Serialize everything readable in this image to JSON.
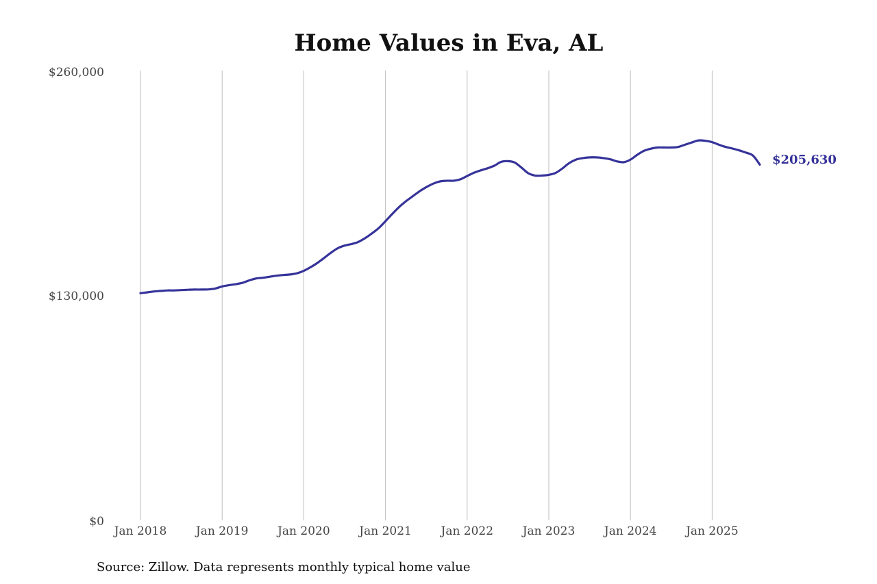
{
  "source_note": "Source: Zillow. Data represents monthly typical home value",
  "colors": {
    "line": "#36339a",
    "grid": "#bdbdbd",
    "text": "#444444"
  },
  "chart_data": {
    "type": "line",
    "title": "Home Values in Eva, AL",
    "xlabel": "",
    "ylabel": "",
    "ylim": [
      0,
      260000
    ],
    "yticks": [
      0,
      130000,
      260000
    ],
    "ytick_labels": [
      "$0",
      "$130,000",
      "$260,000"
    ],
    "xtick_labels": [
      "Jan 2018",
      "Jan 2019",
      "Jan 2020",
      "Jan 2021",
      "Jan 2022",
      "Jan 2023",
      "Jan 2024",
      "Jan 2025"
    ],
    "xtick_years": [
      2018,
      2019,
      2020,
      2021,
      2022,
      2023,
      2024,
      2025
    ],
    "grid": "vertical",
    "end_label": "$205,630",
    "series": [
      {
        "x": [
          "2018-01",
          "2018-02",
          "2018-03",
          "2018-04",
          "2018-05",
          "2018-06",
          "2018-07",
          "2018-08",
          "2018-09",
          "2018-10",
          "2018-11",
          "2018-12",
          "2019-01",
          "2019-02",
          "2019-03",
          "2019-04",
          "2019-05",
          "2019-06",
          "2019-07",
          "2019-08",
          "2019-09",
          "2019-10",
          "2019-11",
          "2019-12",
          "2020-01",
          "2020-02",
          "2020-03",
          "2020-04",
          "2020-05",
          "2020-06",
          "2020-07",
          "2020-08",
          "2020-09",
          "2020-10",
          "2020-11",
          "2020-12",
          "2021-01",
          "2021-02",
          "2021-03",
          "2021-04",
          "2021-05",
          "2021-06",
          "2021-07",
          "2021-08",
          "2021-09",
          "2021-10",
          "2021-11",
          "2021-12",
          "2022-01",
          "2022-02",
          "2022-03",
          "2022-04",
          "2022-05",
          "2022-06",
          "2022-07",
          "2022-08",
          "2022-09",
          "2022-10",
          "2022-11",
          "2022-12",
          "2023-01",
          "2023-02",
          "2023-03",
          "2023-04",
          "2023-05",
          "2023-06",
          "2023-07",
          "2023-08",
          "2023-09",
          "2023-10",
          "2023-11",
          "2023-12",
          "2024-01",
          "2024-02",
          "2024-03",
          "2024-04",
          "2024-05",
          "2024-06",
          "2024-07",
          "2024-08",
          "2024-09",
          "2024-10",
          "2024-11",
          "2024-12",
          "2025-01",
          "2025-02",
          "2025-03",
          "2025-04",
          "2025-05",
          "2025-06",
          "2025-07",
          "2025-08"
        ],
        "values": [
          131300,
          131800,
          132300,
          132600,
          132900,
          132900,
          133100,
          133300,
          133400,
          133400,
          133500,
          134000,
          135200,
          135900,
          136500,
          137300,
          138700,
          139800,
          140200,
          140800,
          141400,
          141800,
          142100,
          142800,
          144200,
          146300,
          148800,
          151700,
          154700,
          157300,
          158800,
          159700,
          160900,
          163100,
          165800,
          168900,
          172900,
          177100,
          181100,
          184400,
          187300,
          190200,
          192600,
          194600,
          195900,
          196300,
          196300,
          197100,
          199000,
          200900,
          202300,
          203500,
          205000,
          207200,
          207600,
          206800,
          203800,
          200600,
          199300,
          199300,
          199700,
          200800,
          203400,
          206500,
          208500,
          209400,
          209800,
          209800,
          209400,
          208700,
          207500,
          207000,
          208500,
          211300,
          213600,
          214800,
          215500,
          215500,
          215500,
          215800,
          217100,
          218400,
          219600,
          219400,
          218600,
          217100,
          215800,
          214900,
          213800,
          212500,
          210800,
          205630
        ]
      }
    ]
  }
}
